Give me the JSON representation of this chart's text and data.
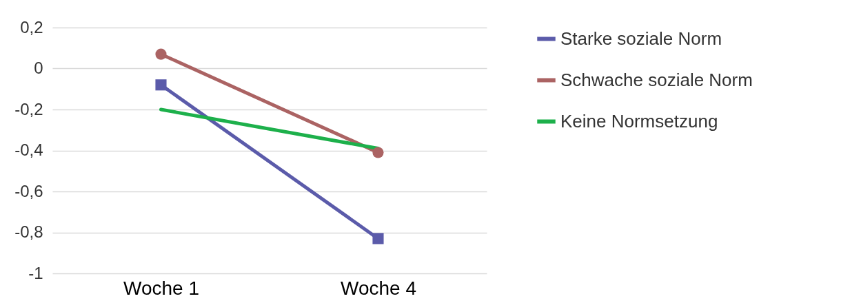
{
  "chart_data": {
    "type": "line",
    "categories": [
      "Woche 1",
      "Woche 4"
    ],
    "series": [
      {
        "name": "Starke soziale Norm",
        "color": "#5b5baa",
        "marker": "square",
        "values": [
          -0.08,
          -0.83
        ]
      },
      {
        "name": "Schwache soziale Norm",
        "color": "#ab6363",
        "marker": "circle",
        "values": [
          0.07,
          -0.41
        ]
      },
      {
        "name": "Keine Normsetzung",
        "color": "#1db04b",
        "marker": "none",
        "values": [
          -0.2,
          -0.39
        ]
      }
    ],
    "ylim": [
      -1,
      0.2
    ],
    "yticks": [
      {
        "value": -1,
        "label": "-1"
      },
      {
        "value": -0.8,
        "label": "-0,8"
      },
      {
        "value": -0.6,
        "label": "-0,6"
      },
      {
        "value": -0.4,
        "label": "-0,4"
      },
      {
        "value": -0.2,
        "label": "-0,2"
      },
      {
        "value": 0,
        "label": "0"
      },
      {
        "value": 0.2,
        "label": "0,2"
      }
    ],
    "grid": "y",
    "legend": "right"
  }
}
